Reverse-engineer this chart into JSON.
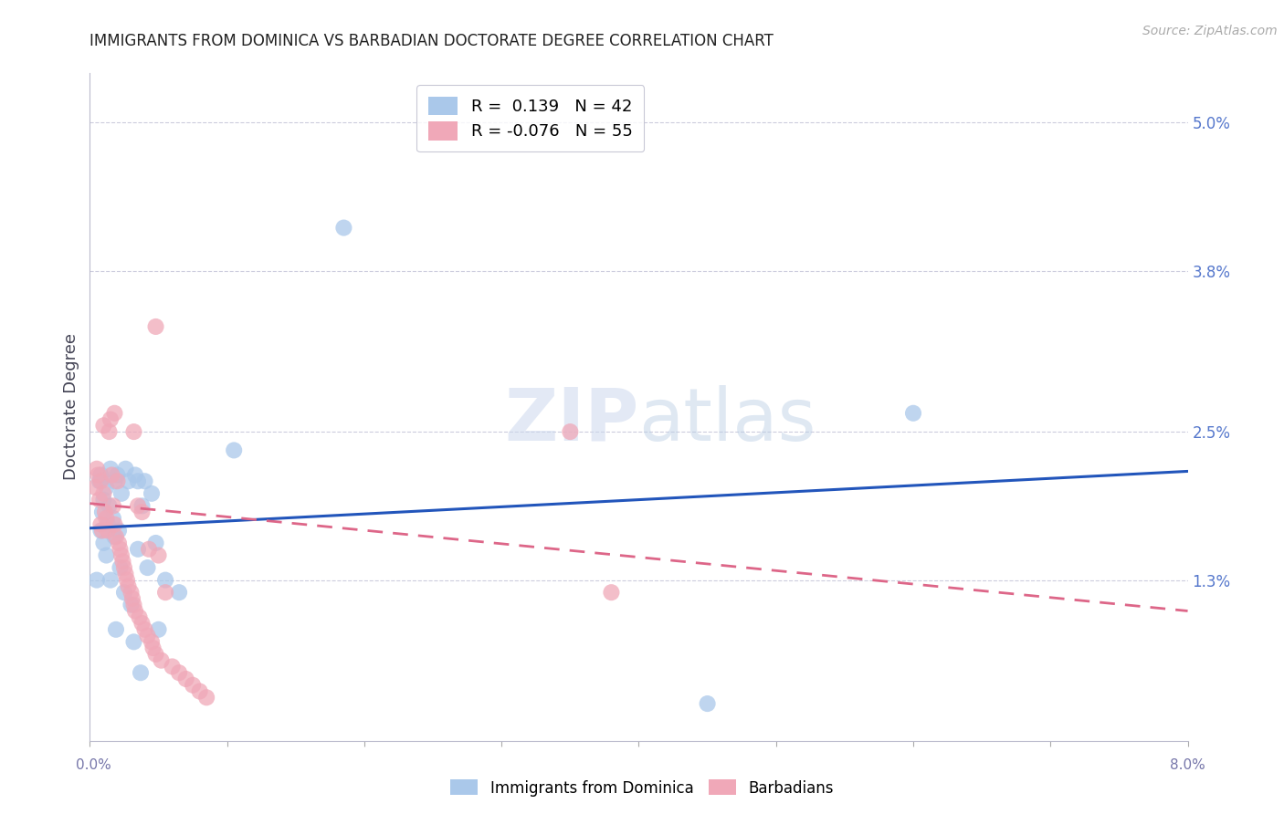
{
  "title": "IMMIGRANTS FROM DOMINICA VS BARBADIAN DOCTORATE DEGREE CORRELATION CHART",
  "source": "Source: ZipAtlas.com",
  "ylabel": "Doctorate Degree",
  "ytick_labels": [
    "5.0%",
    "3.8%",
    "2.5%",
    "1.3%"
  ],
  "ytick_values": [
    5.0,
    3.8,
    2.5,
    1.3
  ],
  "xlim": [
    0.0,
    8.0
  ],
  "ylim": [
    0.0,
    5.4
  ],
  "legend_blue_r": "0.139",
  "legend_blue_n": "42",
  "legend_pink_r": "-0.076",
  "legend_pink_n": "55",
  "color_blue": "#aac8ea",
  "color_pink": "#f0a8b8",
  "line_blue": "#2255bb",
  "line_pink": "#dd6688",
  "grid_color": "#ccccdd",
  "blue_line_x0": 0.0,
  "blue_line_y0": 1.72,
  "blue_line_x1": 8.0,
  "blue_line_y1": 2.18,
  "pink_line_x0": 0.0,
  "pink_line_y0": 1.92,
  "pink_line_x1": 8.0,
  "pink_line_y1": 1.05,
  "blue_scatter_x": [
    0.05,
    0.07,
    0.08,
    0.08,
    0.09,
    0.1,
    0.1,
    0.12,
    0.12,
    0.13,
    0.14,
    0.15,
    0.15,
    0.17,
    0.18,
    0.18,
    0.19,
    0.2,
    0.21,
    0.22,
    0.23,
    0.25,
    0.26,
    0.28,
    0.3,
    0.32,
    0.33,
    0.35,
    0.35,
    0.37,
    0.38,
    0.4,
    0.42,
    0.45,
    0.48,
    0.5,
    0.55,
    0.65,
    1.05,
    1.85,
    4.5,
    6.0
  ],
  "blue_scatter_y": [
    1.3,
    2.1,
    1.7,
    2.15,
    1.85,
    1.6,
    1.95,
    1.5,
    2.05,
    1.75,
    1.9,
    1.3,
    2.2,
    1.8,
    1.65,
    2.1,
    0.9,
    2.15,
    1.7,
    1.4,
    2.0,
    1.2,
    2.2,
    2.1,
    1.1,
    0.8,
    2.15,
    2.1,
    1.55,
    0.55,
    1.9,
    2.1,
    1.4,
    2.0,
    1.6,
    0.9,
    1.3,
    1.2,
    2.35,
    4.15,
    0.3,
    2.65
  ],
  "pink_scatter_x": [
    0.04,
    0.05,
    0.06,
    0.07,
    0.08,
    0.08,
    0.09,
    0.1,
    0.1,
    0.11,
    0.12,
    0.13,
    0.14,
    0.15,
    0.16,
    0.17,
    0.18,
    0.18,
    0.19,
    0.2,
    0.21,
    0.22,
    0.23,
    0.24,
    0.25,
    0.26,
    0.27,
    0.28,
    0.3,
    0.31,
    0.32,
    0.33,
    0.35,
    0.36,
    0.38,
    0.38,
    0.4,
    0.42,
    0.43,
    0.45,
    0.46,
    0.48,
    0.5,
    0.52,
    0.55,
    0.6,
    0.65,
    0.7,
    0.75,
    0.8,
    0.85,
    3.5,
    3.8,
    0.48,
    0.32
  ],
  "pink_scatter_y": [
    2.05,
    2.2,
    2.15,
    1.95,
    2.1,
    1.75,
    1.7,
    2.55,
    2.0,
    1.85,
    1.8,
    1.7,
    2.5,
    2.6,
    2.15,
    1.9,
    1.75,
    2.65,
    1.65,
    2.1,
    1.6,
    1.55,
    1.5,
    1.45,
    1.4,
    1.35,
    1.3,
    1.25,
    1.2,
    1.15,
    1.1,
    1.05,
    1.9,
    1.0,
    1.85,
    0.95,
    0.9,
    0.85,
    1.55,
    0.8,
    0.75,
    0.7,
    1.5,
    0.65,
    1.2,
    0.6,
    0.55,
    0.5,
    0.45,
    0.4,
    0.35,
    2.5,
    1.2,
    3.35,
    2.5
  ]
}
